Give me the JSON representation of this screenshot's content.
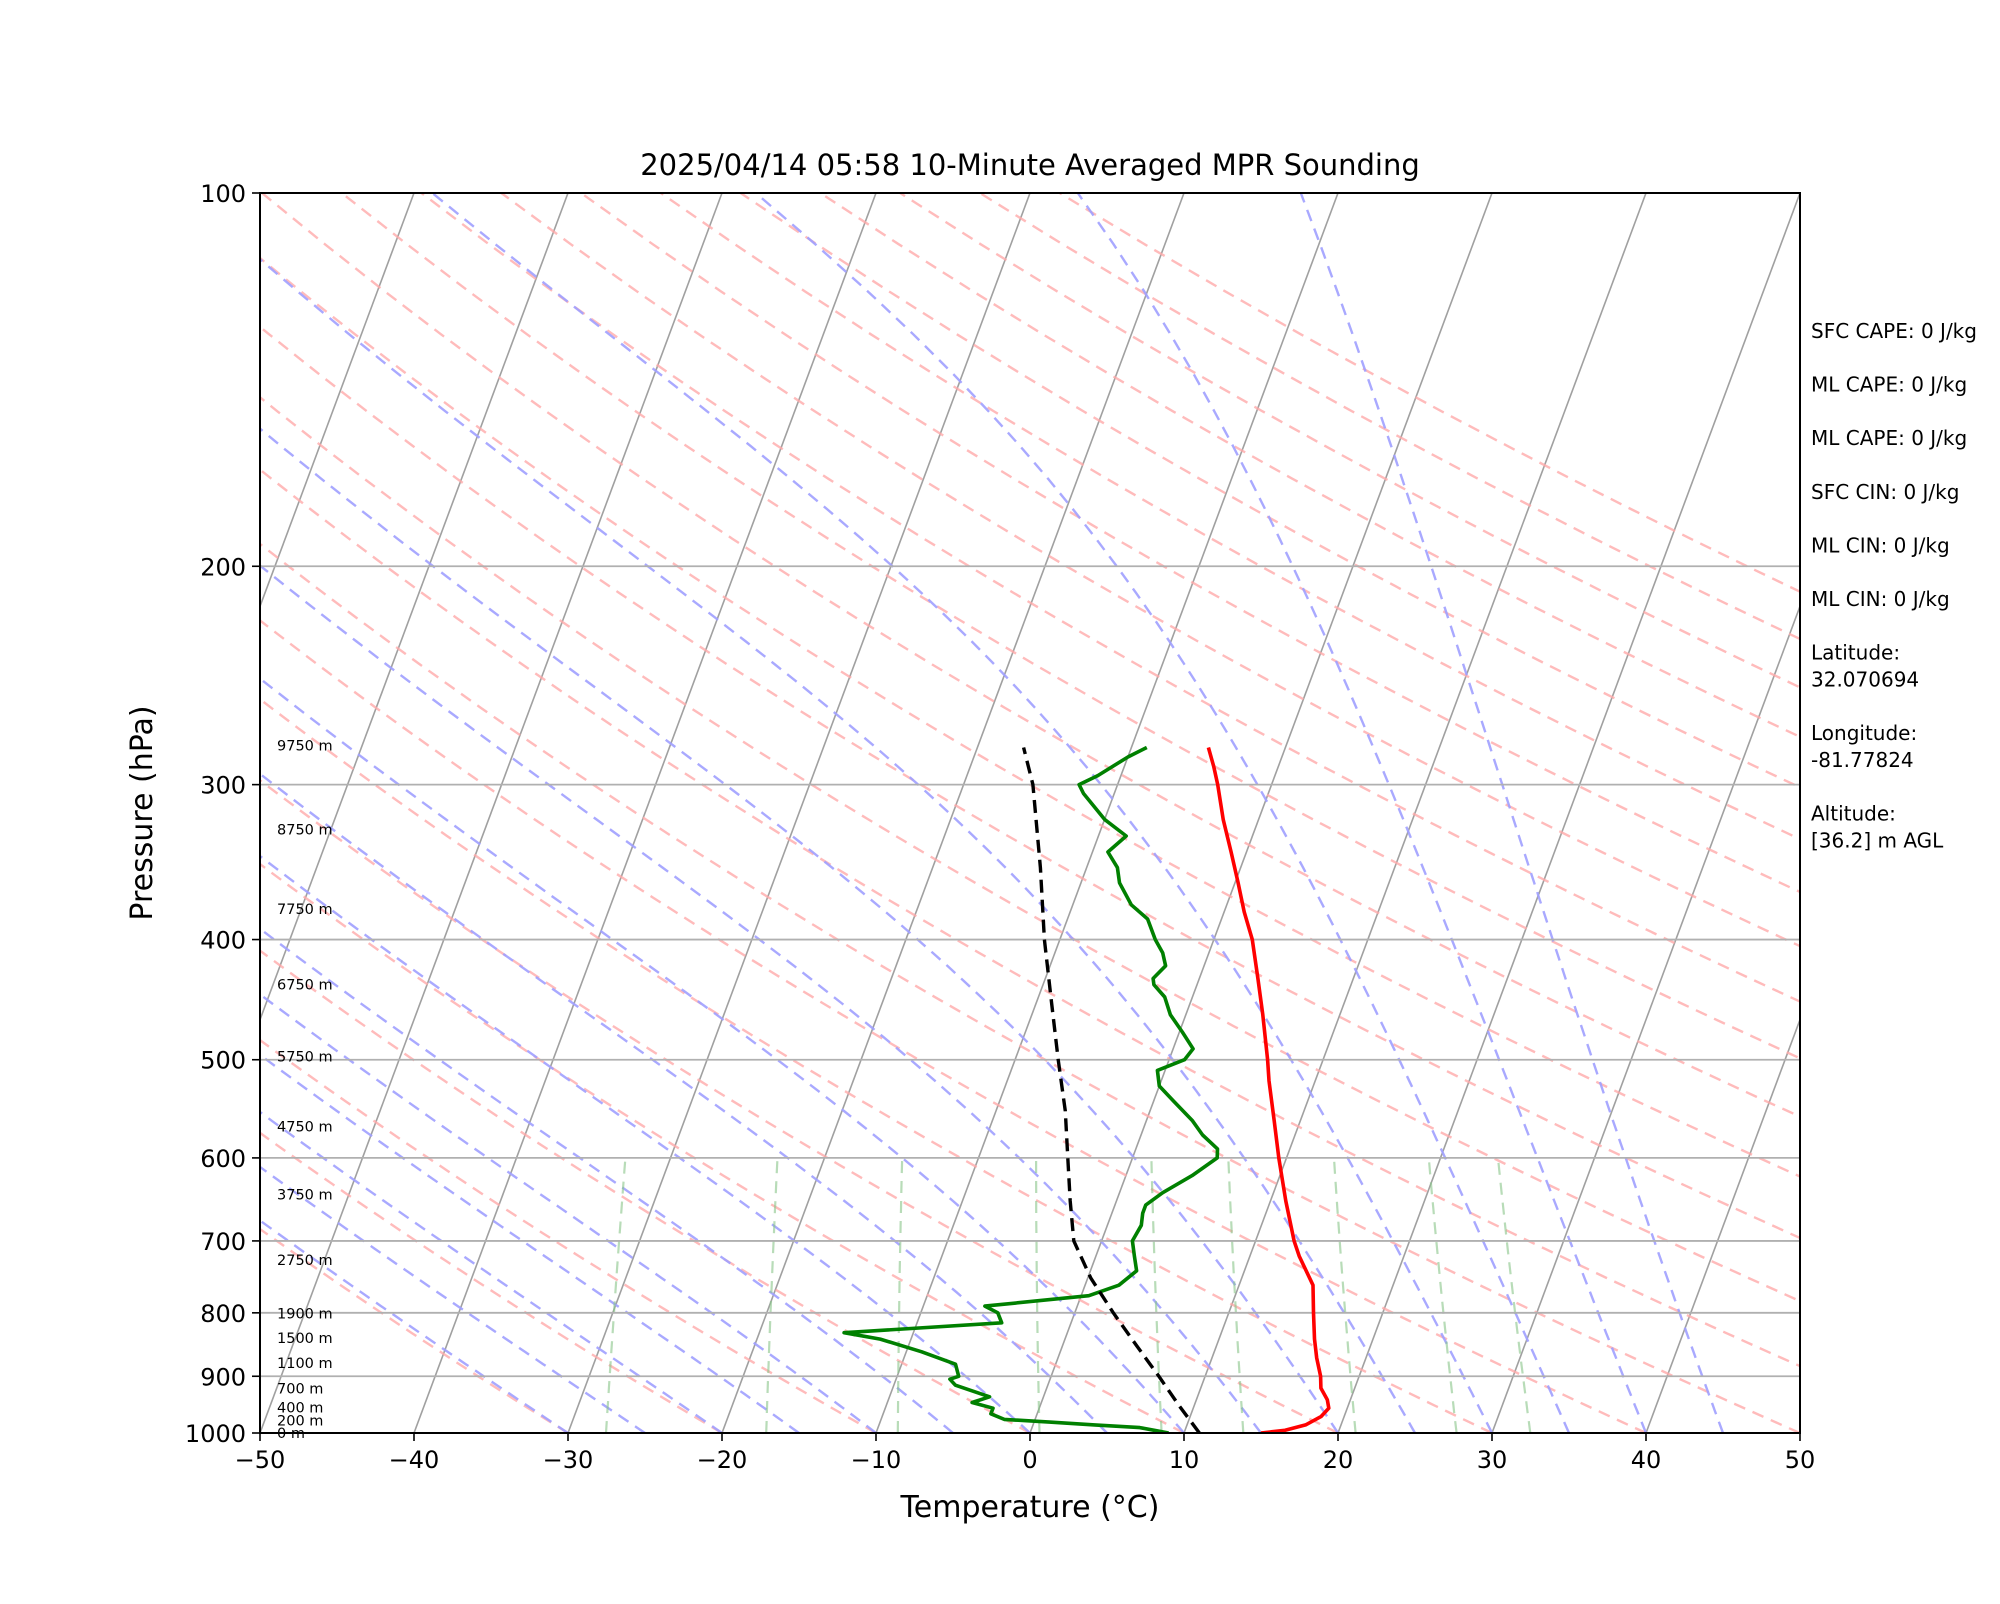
{
  "chart_data": {
    "type": "line",
    "title": "2025/04/14 05:58 10-Minute Averaged MPR Sounding",
    "xlabel": "Temperature (°C)",
    "ylabel": "Pressure (hPa)",
    "xlim": [
      -50,
      50
    ],
    "ylim": [
      1000,
      100
    ],
    "y_scale": "log",
    "grid": true,
    "x_ticks": [
      -50,
      -40,
      -30,
      -20,
      -10,
      0,
      10,
      20,
      30,
      40,
      50
    ],
    "x_tick_labels": [
      "−50",
      "−40",
      "−30",
      "−20",
      "−10",
      "0",
      "10",
      "20",
      "30",
      "40",
      "50"
    ],
    "y_ticks": [
      1000,
      900,
      800,
      700,
      600,
      500,
      400,
      300,
      200,
      100
    ],
    "y_tick_labels": [
      "1000",
      "900",
      "800",
      "700",
      "600",
      "500",
      "400",
      "300",
      "200",
      "100"
    ],
    "series": [
      {
        "role": "temperature",
        "color": "#ff0000",
        "points": [
          [
            1000,
            15.0
          ],
          [
            995,
            16.5
          ],
          [
            985,
            17.7
          ],
          [
            970,
            18.5
          ],
          [
            955,
            18.8
          ],
          [
            940,
            18.5
          ],
          [
            920,
            17.8
          ],
          [
            900,
            17.5
          ],
          [
            870,
            16.8
          ],
          [
            840,
            16.2
          ],
          [
            800,
            15.5
          ],
          [
            760,
            14.8
          ],
          [
            720,
            13.2
          ],
          [
            700,
            12.5
          ],
          [
            650,
            11.0
          ],
          [
            600,
            9.5
          ],
          [
            560,
            8.3
          ],
          [
            520,
            7.0
          ],
          [
            500,
            6.4
          ],
          [
            460,
            5.0
          ],
          [
            430,
            3.8
          ],
          [
            400,
            2.5
          ],
          [
            380,
            1.3
          ],
          [
            360,
            0.2
          ],
          [
            340,
            -1.0
          ],
          [
            320,
            -2.3
          ],
          [
            300,
            -3.5
          ],
          [
            290,
            -4.2
          ],
          [
            280,
            -5.0
          ]
        ]
      },
      {
        "role": "dewpoint",
        "color": "#008000",
        "points": [
          [
            1000,
            9.0
          ],
          [
            995,
            8.0
          ],
          [
            990,
            7.0
          ],
          [
            985,
            4.0
          ],
          [
            980,
            1.0
          ],
          [
            975,
            -2.0
          ],
          [
            965,
            -3.0
          ],
          [
            955,
            -3.0
          ],
          [
            945,
            -4.5
          ],
          [
            935,
            -3.5
          ],
          [
            915,
            -6.0
          ],
          [
            905,
            -6.5
          ],
          [
            900,
            -6.0
          ],
          [
            880,
            -6.5
          ],
          [
            860,
            -9.0
          ],
          [
            840,
            -12.0
          ],
          [
            830,
            -14.5
          ],
          [
            815,
            -4.5
          ],
          [
            800,
            -5.0
          ],
          [
            790,
            -6.0
          ],
          [
            775,
            0.5
          ],
          [
            760,
            2.2
          ],
          [
            740,
            3.0
          ],
          [
            720,
            2.5
          ],
          [
            700,
            2.0
          ],
          [
            680,
            2.2
          ],
          [
            665,
            2.0
          ],
          [
            655,
            2.0
          ],
          [
            640,
            2.8
          ],
          [
            620,
            4.3
          ],
          [
            600,
            5.5
          ],
          [
            590,
            5.3
          ],
          [
            575,
            4.0
          ],
          [
            560,
            3.0
          ],
          [
            540,
            1.3
          ],
          [
            525,
            0.0
          ],
          [
            510,
            -0.5
          ],
          [
            500,
            1.0
          ],
          [
            490,
            1.3
          ],
          [
            475,
            0.2
          ],
          [
            460,
            -1.0
          ],
          [
            445,
            -1.8
          ],
          [
            435,
            -2.8
          ],
          [
            430,
            -3.0
          ],
          [
            420,
            -2.5
          ],
          [
            410,
            -3.0
          ],
          [
            400,
            -3.8
          ],
          [
            385,
            -4.8
          ],
          [
            375,
            -6.2
          ],
          [
            360,
            -7.5
          ],
          [
            350,
            -8.0
          ],
          [
            340,
            -9.0
          ],
          [
            330,
            -8.2
          ],
          [
            320,
            -10.0
          ],
          [
            305,
            -12.0
          ],
          [
            300,
            -12.5
          ],
          [
            295,
            -11.5
          ],
          [
            285,
            -10.0
          ],
          [
            280,
            -9.0
          ]
        ]
      },
      {
        "role": "parcel",
        "color": "#000000",
        "style": "dashed",
        "points": [
          [
            1000,
            11.0
          ],
          [
            950,
            9.0
          ],
          [
            900,
            7.0
          ],
          [
            850,
            4.8
          ],
          [
            800,
            2.5
          ],
          [
            750,
            0.2
          ],
          [
            700,
            -1.8
          ],
          [
            650,
            -3.0
          ],
          [
            600,
            -4.2
          ],
          [
            550,
            -5.5
          ],
          [
            500,
            -7.2
          ],
          [
            450,
            -9.0
          ],
          [
            400,
            -11.0
          ],
          [
            350,
            -13.0
          ],
          [
            300,
            -15.5
          ],
          [
            280,
            -17.0
          ]
        ]
      }
    ],
    "height_labels": [
      {
        "pressure": 1000,
        "text": "0 m"
      },
      {
        "pressure": 977,
        "text": "200 m"
      },
      {
        "pressure": 954,
        "text": "400 m"
      },
      {
        "pressure": 921,
        "text": "700 m"
      },
      {
        "pressure": 878,
        "text": "1100 m"
      },
      {
        "pressure": 838,
        "text": "1500 m"
      },
      {
        "pressure": 801,
        "text": "1900 m"
      },
      {
        "pressure": 725,
        "text": "2750 m"
      },
      {
        "pressure": 642,
        "text": "3750 m"
      },
      {
        "pressure": 566,
        "text": "4750 m"
      },
      {
        "pressure": 497,
        "text": "5750 m"
      },
      {
        "pressure": 435,
        "text": "6750 m"
      },
      {
        "pressure": 378,
        "text": "7750 m"
      },
      {
        "pressure": 326,
        "text": "8750 m"
      },
      {
        "pressure": 279,
        "text": "9750 m"
      }
    ],
    "info_panel": [
      [
        "SFC CAPE: 0 J/kg"
      ],
      [
        "ML CAPE: 0 J/kg"
      ],
      [
        "ML CAPE: 0 J/kg"
      ],
      [
        "SFC CIN: 0 J/kg"
      ],
      [
        "ML CIN: 0 J/kg"
      ],
      [
        "ML CIN: 0 J/kg"
      ],
      [
        "Latitude:",
        "32.070694"
      ],
      [
        "Longitude:",
        "-81.77824"
      ],
      [
        "Altitude:",
        "[36.2] m AGL"
      ]
    ],
    "colors": {
      "temperature": "#ff0000",
      "dewpoint": "#008000",
      "parcel": "#000000",
      "isotherms": "#a0a0a0",
      "dry_adiabats": "#ffaaaa",
      "moist_adiabats": "#a0a0ff",
      "mixing_ratio": "#88c488"
    }
  }
}
